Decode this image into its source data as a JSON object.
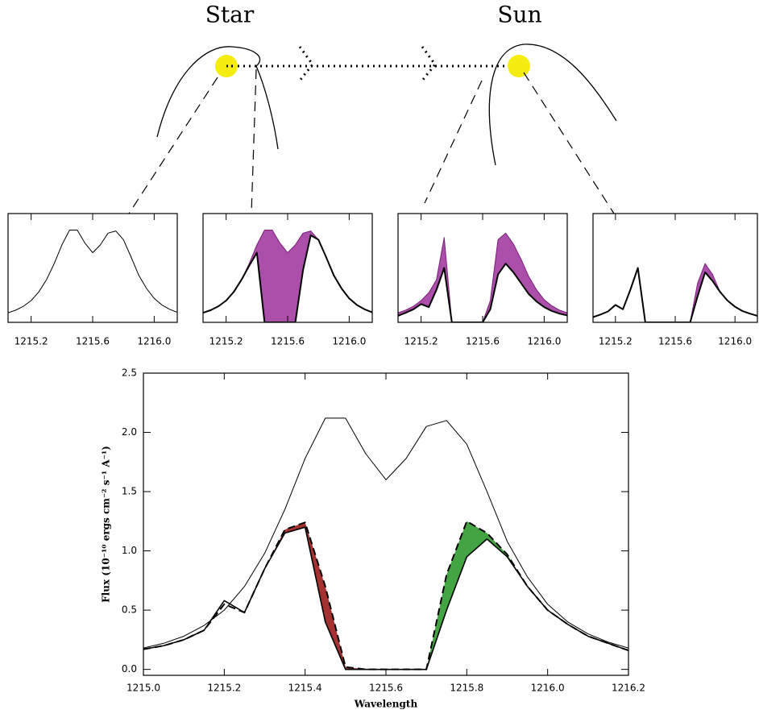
{
  "diagram": {
    "star_label": "Star",
    "sun_label": "Sun"
  },
  "chart_data": [
    {
      "type": "line",
      "x": [
        1215.05,
        1215.1,
        1215.15,
        1215.2,
        1215.25,
        1215.3,
        1215.35,
        1215.4,
        1215.45,
        1215.5,
        1215.55,
        1215.6,
        1215.65,
        1215.7,
        1215.75,
        1215.8,
        1215.85,
        1215.9,
        1215.95,
        1216,
        1216.05,
        1216.1,
        1216.15
      ],
      "xlim": [
        1215.05,
        1216.15
      ],
      "ylim": [
        0,
        2.5
      ],
      "xticks": [
        1215.2,
        1215.6,
        {
          "value": 1216,
          "label": "1216.0"
        }
      ],
      "series": [
        {
          "color": "#000000",
          "line_width": 1,
          "values": [
            0.22,
            0.28,
            0.37,
            0.5,
            0.7,
            0.98,
            1.35,
            1.78,
            2.12,
            2.12,
            1.82,
            1.6,
            1.78,
            2.05,
            2.1,
            1.9,
            1.5,
            1.08,
            0.78,
            0.55,
            0.4,
            0.3,
            0.23
          ]
        }
      ]
    },
    {
      "type": "line",
      "x": [
        1215.05,
        1215.1,
        1215.15,
        1215.2,
        1215.25,
        1215.3,
        1215.35,
        1215.4,
        1215.45,
        1215.5,
        1215.55,
        1215.6,
        1215.65,
        1215.7,
        1215.75,
        1215.8,
        1215.85,
        1215.9,
        1215.95,
        1216,
        1216.05,
        1216.1,
        1216.15
      ],
      "xlim": [
        1215.05,
        1216.15
      ],
      "ylim": [
        0,
        2.5
      ],
      "xticks": [
        1215.2,
        1215.6,
        {
          "value": 1216,
          "label": "1216.0"
        }
      ],
      "fill_color": "#a23ca2",
      "series": [
        {
          "color": "#7a1f7a",
          "line_width": 1,
          "values": [
            0.22,
            0.28,
            0.37,
            0.5,
            0.7,
            0.98,
            1.35,
            1.78,
            2.12,
            2.12,
            1.82,
            1.6,
            1.78,
            2.05,
            2.1,
            1.9,
            1.5,
            1.08,
            0.78,
            0.55,
            0.4,
            0.3,
            0.23
          ]
        },
        {
          "color": "#000000",
          "line_width": 2,
          "values": [
            0.22,
            0.28,
            0.37,
            0.5,
            0.7,
            0.98,
            1.3,
            1.6,
            0,
            0,
            0,
            0,
            0,
            1.2,
            2,
            1.9,
            1.5,
            1.08,
            0.78,
            0.55,
            0.4,
            0.3,
            0.23
          ]
        }
      ]
    },
    {
      "type": "line",
      "x": [
        1215.05,
        1215.1,
        1215.15,
        1215.2,
        1215.25,
        1215.3,
        1215.35,
        1215.4,
        1215.45,
        1215.5,
        1215.55,
        1215.6,
        1215.65,
        1215.7,
        1215.75,
        1215.8,
        1215.85,
        1215.9,
        1215.95,
        1216,
        1216.05,
        1216.1,
        1216.15
      ],
      "xlim": [
        1215.05,
        1216.15
      ],
      "ylim": [
        0,
        2.5
      ],
      "xticks": [
        1215.2,
        1215.6,
        {
          "value": 1216,
          "label": "1216.0"
        }
      ],
      "fill_color": "#a23ca2",
      "series": [
        {
          "color": "#7a1f7a",
          "line_width": 1,
          "values": [
            0.22,
            0.28,
            0.37,
            0.5,
            0.68,
            0.98,
            1.95,
            0,
            0,
            0,
            0,
            0,
            0.5,
            1.9,
            2.05,
            1.8,
            1.45,
            1.05,
            0.75,
            0.52,
            0.38,
            0.28,
            0.22
          ]
        },
        {
          "color": "#000000",
          "line_width": 2,
          "values": [
            0.15,
            0.22,
            0.3,
            0.42,
            0.35,
            0.75,
            1.25,
            0,
            0,
            0,
            0,
            0,
            0.3,
            1.1,
            1.35,
            1.15,
            0.9,
            0.65,
            0.48,
            0.35,
            0.26,
            0.2,
            0.16
          ]
        }
      ]
    },
    {
      "type": "line",
      "x": [
        1215.05,
        1215.1,
        1215.15,
        1215.2,
        1215.25,
        1215.3,
        1215.35,
        1215.4,
        1215.45,
        1215.5,
        1215.55,
        1215.6,
        1215.65,
        1215.7,
        1215.75,
        1215.8,
        1215.85,
        1215.9,
        1215.95,
        1216,
        1216.05,
        1216.1,
        1216.15
      ],
      "xlim": [
        1215.05,
        1216.15
      ],
      "ylim": [
        0,
        2.5
      ],
      "xticks": [
        1215.2,
        1215.6,
        {
          "value": 1216,
          "label": "1216.0"
        }
      ],
      "fill_color": "#a23ca2",
      "series": [
        {
          "color": "#7a1f7a",
          "line_width": 1,
          "values": [
            0.12,
            0.18,
            0.25,
            0.4,
            0.3,
            0.75,
            1.25,
            0,
            0,
            0,
            0,
            0,
            0,
            0,
            0.9,
            1.35,
            1.1,
            0.7,
            0.5,
            0.36,
            0.26,
            0.2,
            0.15
          ]
        },
        {
          "color": "#000000",
          "line_width": 2,
          "values": [
            0.12,
            0.18,
            0.25,
            0.4,
            0.3,
            0.75,
            1.25,
            0,
            0,
            0,
            0,
            0,
            0,
            0,
            0.6,
            1.15,
            0.95,
            0.7,
            0.5,
            0.36,
            0.26,
            0.2,
            0.15
          ]
        }
      ]
    },
    {
      "type": "line",
      "x_label": "Wavelength",
      "y_label": "Flux (10⁻¹⁰ ergs cm⁻² s⁻¹ A⁻¹)",
      "x": [
        1215,
        1215.05,
        1215.1,
        1215.15,
        1215.2,
        1215.25,
        1215.3,
        1215.35,
        1215.4,
        1215.45,
        1215.5,
        1215.55,
        1215.6,
        1215.65,
        1215.7,
        1215.75,
        1215.8,
        1215.85,
        1215.9,
        1215.95,
        1216,
        1216.05,
        1216.1,
        1216.15,
        1216.2
      ],
      "xlim": [
        1215,
        1216.2
      ],
      "ylim": [
        -0.05,
        2.5
      ],
      "xticks": [
        {
          "value": 1215,
          "label": "1215.0"
        },
        1215.2,
        1215.4,
        1215.6,
        1215.8,
        {
          "value": 1216,
          "label": "1216.0"
        },
        1216.2
      ],
      "yticks": [
        {
          "value": 0,
          "label": "0.0"
        },
        0.5,
        {
          "value": 1,
          "label": "1.0"
        },
        1.5,
        {
          "value": 2,
          "label": "2.0"
        },
        2.5
      ],
      "fill_colors": [
        "#9b1b1b",
        "#2e9a2e"
      ],
      "series": [
        {
          "color": "#000000",
          "line_width": 1,
          "values": [
            0.18,
            0.22,
            0.28,
            0.37,
            0.5,
            0.7,
            0.98,
            1.35,
            1.78,
            2.12,
            2.12,
            1.82,
            1.6,
            1.78,
            2.05,
            2.1,
            1.9,
            1.5,
            1.08,
            0.78,
            0.55,
            0.4,
            0.3,
            0.23,
            0.18
          ]
        },
        {
          "color": "#000000",
          "line_width": 2,
          "line_style": "dashed",
          "values": [
            0.17,
            0.2,
            0.25,
            0.33,
            0.55,
            0.48,
            0.85,
            1.18,
            1.24,
            0.7,
            0.02,
            0,
            0,
            0,
            0,
            0.8,
            1.25,
            1.15,
            0.97,
            0.7,
            0.5,
            0.38,
            0.28,
            0.22,
            0.16
          ]
        },
        {
          "color": "#000000",
          "line_width": 1.6,
          "values": [
            0.17,
            0.2,
            0.25,
            0.33,
            0.58,
            0.48,
            0.85,
            1.15,
            1.2,
            0.4,
            0,
            0,
            0,
            0,
            0,
            0.5,
            0.95,
            1.1,
            0.95,
            0.7,
            0.5,
            0.38,
            0.28,
            0.22,
            0.16
          ]
        }
      ]
    }
  ]
}
